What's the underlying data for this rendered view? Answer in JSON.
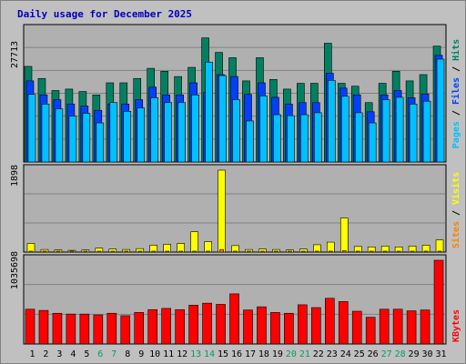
{
  "title": "Daily usage for December 2025",
  "colors": {
    "background": "#c0c0c0",
    "panel": "#b0b0b0",
    "grid": "#808080",
    "title": "#0000c0",
    "pages": "#00c0ff",
    "files": "#0040ff",
    "hits": "#008060",
    "visits": "#ffff00",
    "sites": "#ff8000",
    "kbytes": "#ff0000",
    "weekend_label": "#00a060",
    "weekday_label": "#000000"
  },
  "chart_data": [
    {
      "type": "bar",
      "title": "Daily usage for December 2025",
      "ylabel": "Pages / Files / Hits",
      "y_tick_label": "27713",
      "ylim": [
        0,
        27713
      ],
      "categories": [
        "1",
        "2",
        "3",
        "4",
        "5",
        "6",
        "7",
        "8",
        "9",
        "10",
        "11",
        "12",
        "13",
        "14",
        "15",
        "16",
        "17",
        "18",
        "19",
        "20",
        "21",
        "22",
        "23",
        "24",
        "25",
        "26",
        "27",
        "28",
        "29",
        "30",
        "31"
      ],
      "weekend_days": [
        "6",
        "7",
        "13",
        "14",
        "20",
        "21",
        "27",
        "28"
      ],
      "legend": [
        {
          "name": "Pages",
          "color": "#00c0ff"
        },
        {
          "name": "Files",
          "color": "#0040ff"
        },
        {
          "name": "Hits",
          "color": "#008060"
        }
      ],
      "series": [
        {
          "name": "Hits",
          "values": [
            19800,
            17300,
            14800,
            15100,
            14600,
            13900,
            16400,
            16400,
            17300,
            19400,
            18800,
            17700,
            19600,
            25700,
            22700,
            21600,
            16800,
            21600,
            17100,
            15100,
            16300,
            16300,
            24600,
            16300,
            15700,
            12300,
            16300,
            18800,
            16800,
            18100,
            24000
          ]
        },
        {
          "name": "Files",
          "values": [
            16800,
            13900,
            12900,
            12000,
            11600,
            10700,
            12000,
            12000,
            12900,
            15500,
            13900,
            13900,
            16400,
            14400,
            18100,
            17700,
            14000,
            16400,
            13400,
            12000,
            12300,
            12300,
            18400,
            15300,
            13900,
            10400,
            13900,
            14800,
            13300,
            14100,
            22100
          ]
        },
        {
          "name": "Pages",
          "values": [
            14000,
            12000,
            11000,
            9500,
            10100,
            8100,
            12300,
            10500,
            11200,
            13300,
            12300,
            12300,
            13900,
            20700,
            17900,
            12900,
            8500,
            13700,
            9800,
            9600,
            9800,
            10200,
            16900,
            13600,
            10200,
            8100,
            12900,
            13400,
            12000,
            12600,
            21300
          ]
        }
      ]
    },
    {
      "type": "bar",
      "ylabel": "Sites / Visits",
      "y_tick_label": "1898",
      "ylim": [
        0,
        1898
      ],
      "legend": [
        {
          "name": "Sites",
          "color": "#ff8000"
        },
        {
          "name": "Visits",
          "color": "#ffff00"
        }
      ],
      "series": [
        {
          "name": "Visits",
          "values": [
            200,
            60,
            50,
            40,
            50,
            90,
            70,
            60,
            80,
            160,
            180,
            200,
            470,
            240,
            1898,
            150,
            60,
            70,
            60,
            50,
            70,
            170,
            230,
            790,
            130,
            120,
            140,
            120,
            140,
            160,
            280
          ]
        },
        {
          "name": "Sites",
          "values": [
            50,
            20,
            20,
            15,
            20,
            25,
            20,
            20,
            25,
            40,
            45,
            50,
            90,
            60,
            300,
            40,
            20,
            20,
            20,
            15,
            20,
            40,
            50,
            150,
            30,
            30,
            35,
            30,
            35,
            40,
            60
          ]
        }
      ]
    },
    {
      "type": "bar",
      "ylabel": "KBytes",
      "y_tick_label": "1035698",
      "ylim": [
        0,
        1035698
      ],
      "legend": [
        {
          "name": "KBytes",
          "color": "#ff0000"
        }
      ],
      "series": [
        {
          "name": "KBytes",
          "values": [
            430000,
            415000,
            380000,
            370000,
            370000,
            360000,
            380000,
            350000,
            390000,
            425000,
            440000,
            425000,
            480000,
            505000,
            490000,
            620000,
            420000,
            460000,
            390000,
            380000,
            485000,
            450000,
            565000,
            525000,
            405000,
            330000,
            430000,
            430000,
            410000,
            420000,
            1035698
          ]
        }
      ]
    }
  ]
}
